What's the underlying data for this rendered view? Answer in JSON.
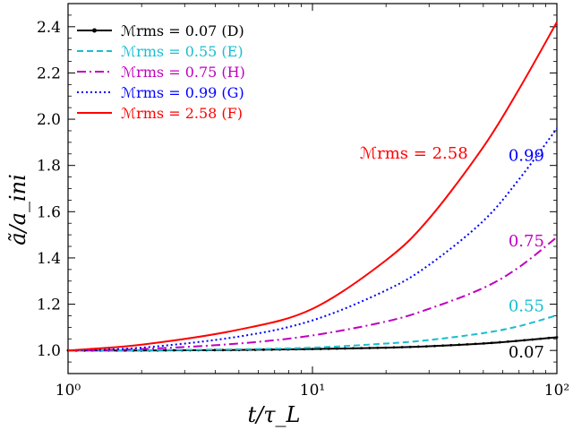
{
  "chart_data": {
    "type": "line",
    "xlabel": "t/τ_L",
    "ylabel": "ã/a_ini",
    "xscale": "log",
    "xlim": [
      1,
      100
    ],
    "ylim": [
      0.9,
      2.5
    ],
    "x_ticks": [
      1,
      10,
      100
    ],
    "x_tick_labels": [
      "10⁰",
      "10¹",
      "10²"
    ],
    "y_ticks": [
      1.0,
      1.2,
      1.4,
      1.6,
      1.8,
      2.0,
      2.2,
      2.4
    ],
    "y_tick_labels": [
      "1.0",
      "1.2",
      "1.4",
      "1.6",
      "1.8",
      "2.0",
      "2.2",
      "2.4"
    ],
    "grid": false,
    "legend_position": "top-left",
    "series": [
      {
        "name": "ℳrms = 0.07 (D)",
        "color": "#000000",
        "style": "solid-dots",
        "x": [
          1,
          2,
          5,
          10,
          20,
          30,
          50,
          70,
          100
        ],
        "y": [
          1.0,
          1.0,
          1.002,
          1.006,
          1.012,
          1.018,
          1.03,
          1.042,
          1.057
        ]
      },
      {
        "name": "ℳrms = 0.55 (E)",
        "color": "#17becf",
        "style": "dashed",
        "x": [
          1,
          2,
          5,
          10,
          20,
          30,
          50,
          70,
          100
        ],
        "y": [
          1.0,
          1.001,
          1.005,
          1.012,
          1.03,
          1.045,
          1.075,
          1.105,
          1.152
        ]
      },
      {
        "name": "ℳrms = 0.75 (H)",
        "color": "#bf00bf",
        "style": "dashdot",
        "x": [
          1,
          2,
          5,
          10,
          20,
          30,
          50,
          70,
          100
        ],
        "y": [
          1.0,
          1.006,
          1.03,
          1.065,
          1.125,
          1.18,
          1.27,
          1.36,
          1.49
        ]
      },
      {
        "name": "ℳrms = 0.99 (G)",
        "color": "#0000ff",
        "style": "dotted",
        "x": [
          1,
          2,
          5,
          10,
          20,
          30,
          50,
          70,
          100
        ],
        "y": [
          1.0,
          1.012,
          1.06,
          1.13,
          1.26,
          1.37,
          1.56,
          1.74,
          1.96
        ]
      },
      {
        "name": "ℳrms = 2.58 (F)",
        "color": "#ff0000",
        "style": "solid",
        "x": [
          1,
          2,
          5,
          10,
          20,
          30,
          50,
          70,
          100
        ],
        "y": [
          1.0,
          1.025,
          1.09,
          1.18,
          1.39,
          1.57,
          1.88,
          2.13,
          2.42
        ]
      }
    ],
    "annotations": [
      {
        "text": "ℳrms = 2.58",
        "color": "#ff0000",
        "x": 26,
        "y": 1.83
      },
      {
        "text": "0.99",
        "color": "#0000ff",
        "x": 75,
        "y": 1.82
      },
      {
        "text": "0.75",
        "color": "#bf00bf",
        "x": 75,
        "y": 1.45
      },
      {
        "text": "0.55",
        "color": "#17becf",
        "x": 75,
        "y": 1.17
      },
      {
        "text": "0.07",
        "color": "#000000",
        "x": 75,
        "y": 0.97
      }
    ]
  }
}
